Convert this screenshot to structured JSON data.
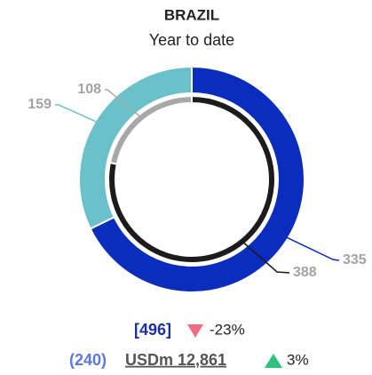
{
  "chart_data": {
    "type": "double-donut",
    "title": "BRAZIL",
    "subtitle": "Year to date",
    "rings": [
      {
        "values": [
          335,
          159
        ],
        "colors": [
          "#0a2dbd",
          "#6bc1c9"
        ]
      },
      {
        "values": [
          388,
          108
        ],
        "colors": [
          "#1c1c1c",
          "#a8a8a8"
        ]
      }
    ],
    "summary": {
      "total": "[496]",
      "total_change": "-23%",
      "secondary": "(240)",
      "amount": "USDm 12,861",
      "amount_change": "3%"
    }
  }
}
